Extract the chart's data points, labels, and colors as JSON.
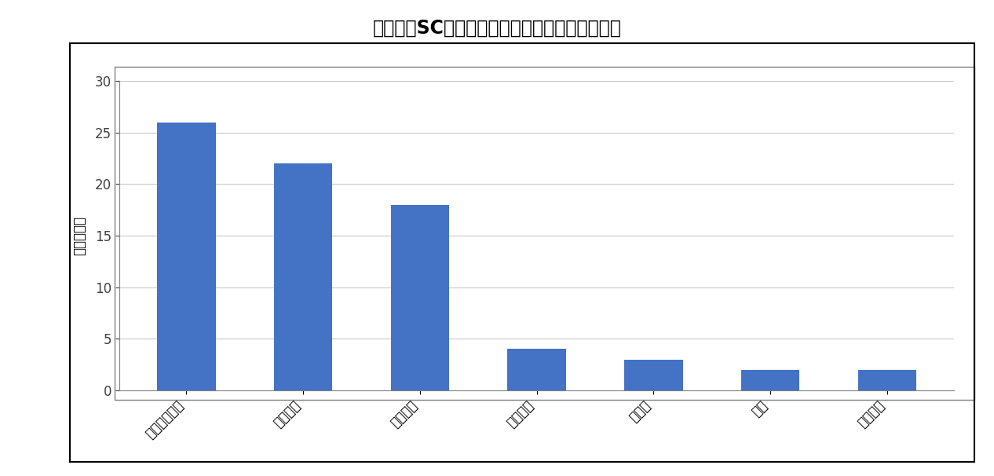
{
  "title": "図表１：SC受入れ基金の母体企業・機関の内訳",
  "categories": [
    "一般事業会社",
    "銀行関連",
    "職業団体",
    "公的機関",
    "外資糸",
    "保険",
    "学校法人"
  ],
  "values": [
    26,
    22,
    18,
    4,
    3,
    2,
    2
  ],
  "bar_color": "#4472C4",
  "ylabel": "（基金数）",
  "ylim": [
    0,
    30
  ],
  "yticks": [
    0,
    5,
    10,
    15,
    20,
    25,
    30
  ],
  "title_fontsize": 17,
  "tick_fontsize": 12,
  "ylabel_fontsize": 12,
  "background_color": "#ffffff",
  "plot_bg_color": "#ffffff",
  "grid_color": "#c8c8c8",
  "outer_box_color": "#000000",
  "inner_box_color": "#808080"
}
